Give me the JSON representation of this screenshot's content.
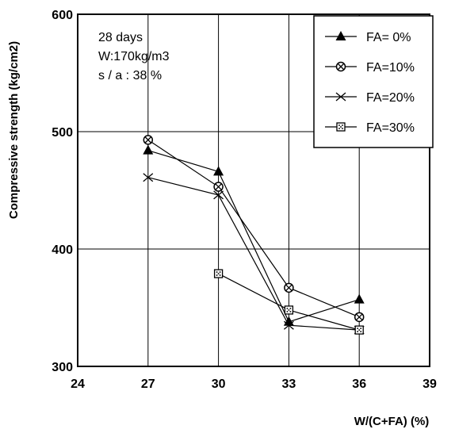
{
  "chart_data": {
    "type": "line",
    "xlabel": "W/(C+FA) (%)",
    "ylabel": "Compressive strength (kg/cm2)",
    "xlim": [
      24,
      39
    ],
    "ylim": [
      300,
      600
    ],
    "xticks": [
      "24",
      "27",
      "30",
      "33",
      "36",
      "39"
    ],
    "yticks": [
      "300",
      "400",
      "500",
      "600"
    ],
    "grid": true,
    "legend_position": "top-right",
    "annotations": [
      "28 days",
      "W:170kg/m3",
      "s / a : 38 %"
    ],
    "series": [
      {
        "name": "FA= 0%",
        "marker": "triangle",
        "x": [
          27,
          30,
          33,
          36
        ],
        "y": [
          484,
          466,
          338,
          357
        ]
      },
      {
        "name": "FA=10%",
        "marker": "circle-x",
        "x": [
          27,
          30,
          33,
          36
        ],
        "y": [
          493,
          453,
          367,
          342
        ]
      },
      {
        "name": "FA=20%",
        "marker": "x",
        "x": [
          27,
          30,
          33,
          36
        ],
        "y": [
          461,
          446,
          335,
          331
        ]
      },
      {
        "name": "FA=30%",
        "marker": "square-dot",
        "x": [
          30,
          33,
          36
        ],
        "y": [
          379,
          348,
          331
        ]
      }
    ]
  }
}
